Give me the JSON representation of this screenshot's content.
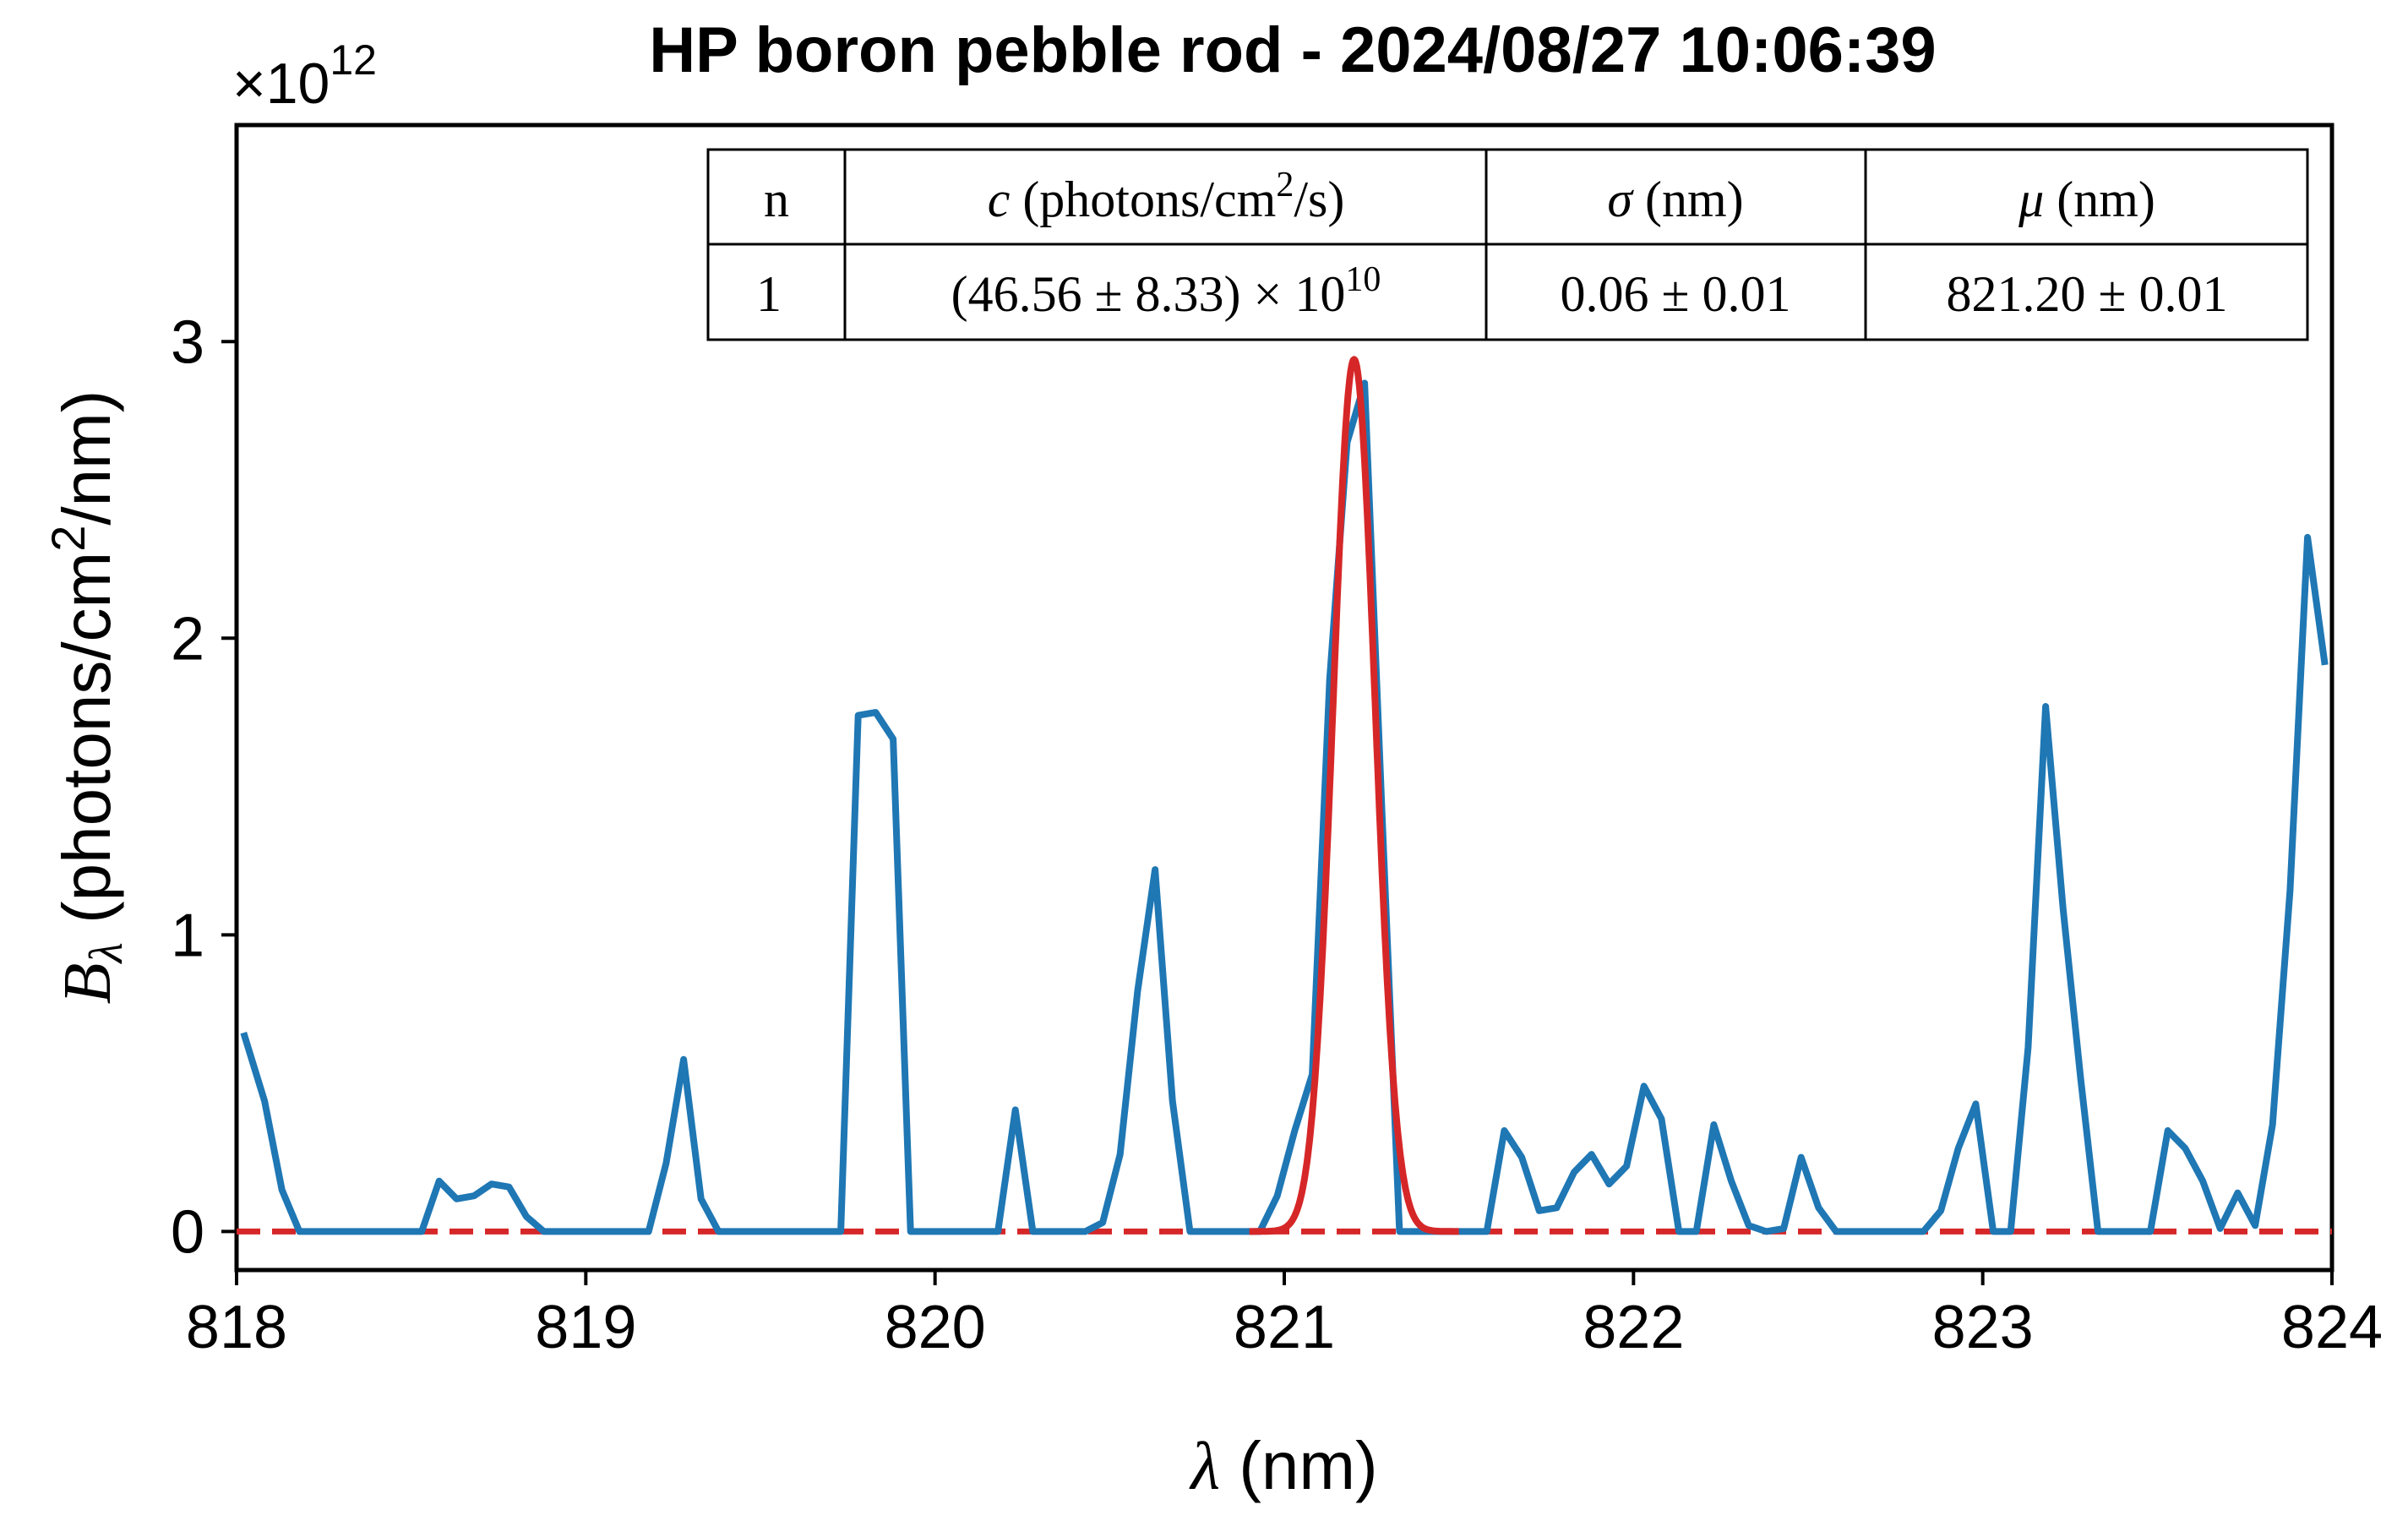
{
  "chart_data": {
    "type": "line",
    "title": "HP boron pebble rod - 2024/08/27 10:06:39",
    "xlabel_symbol": "λ",
    "xlabel_unit": " (nm)",
    "ylabel_symbol": "B",
    "ylabel_subscript": "λ",
    "ylabel_unit_a": "  (photons/cm",
    "ylabel_unit_sup": "2",
    "ylabel_unit_b": "/nm)",
    "y_multiplier_base": "×10",
    "y_multiplier_exp": "12",
    "xlim": [
      818,
      824
    ],
    "ylim": [
      -0.13,
      3.73
    ],
    "y_scale": 1000000000000.0,
    "xticks": [
      818,
      819,
      820,
      821,
      822,
      823,
      824
    ],
    "yticks": [
      0,
      1,
      2,
      3
    ],
    "grid": false,
    "colors": {
      "measured": "#1f77b4",
      "fit": "#d62728",
      "baseline": "#d62728"
    },
    "series": [
      {
        "style": "solid",
        "color": "#1f77b4",
        "x": [
          818.02,
          818.08,
          818.13,
          818.18,
          818.23,
          818.28,
          818.33,
          818.38,
          818.43,
          818.48,
          818.53,
          818.58,
          818.63,
          818.68,
          818.73,
          818.78,
          818.83,
          818.88,
          818.93,
          818.98,
          819.03,
          819.08,
          819.13,
          819.18,
          819.23,
          819.28,
          819.33,
          819.38,
          819.43,
          819.48,
          819.53,
          819.58,
          819.63,
          819.68,
          819.73,
          819.78,
          819.83,
          819.88,
          819.93,
          819.98,
          820.03,
          820.08,
          820.13,
          820.18,
          820.23,
          820.28,
          820.33,
          820.38,
          820.43,
          820.48,
          820.53,
          820.58,
          820.63,
          820.68,
          820.73,
          820.78,
          820.83,
          820.88,
          820.93,
          820.98,
          821.03,
          821.08,
          821.13,
          821.18,
          821.23,
          821.28,
          821.33,
          821.38,
          821.43,
          821.48,
          821.53,
          821.58,
          821.63,
          821.68,
          821.73,
          821.78,
          821.83,
          821.88,
          821.93,
          821.98,
          822.03,
          822.08,
          822.13,
          822.18,
          822.23,
          822.28,
          822.33,
          822.38,
          822.43,
          822.48,
          822.53,
          822.58,
          822.63,
          822.68,
          822.73,
          822.78,
          822.83,
          822.88,
          822.93,
          822.98,
          823.03,
          823.08,
          823.13,
          823.18,
          823.23,
          823.28,
          823.33,
          823.38,
          823.43,
          823.48,
          823.53,
          823.58,
          823.63,
          823.68,
          823.73,
          823.78,
          823.83,
          823.88,
          823.93,
          823.98
        ],
        "values": [
          0.67,
          0.44,
          0.14,
          0.0,
          0.0,
          0.0,
          0.0,
          0.0,
          0.0,
          0.0,
          0.0,
          0.17,
          0.11,
          0.12,
          0.16,
          0.15,
          0.05,
          0.0,
          0.0,
          0.0,
          0.0,
          0.0,
          0.0,
          0.0,
          0.23,
          0.58,
          0.11,
          0.0,
          0.0,
          0.0,
          0.0,
          0.0,
          0.0,
          0.0,
          0.0,
          1.74,
          1.75,
          1.66,
          0.0,
          0.0,
          0.0,
          0.0,
          0.0,
          0.0,
          0.41,
          0.0,
          0.0,
          0.0,
          0.0,
          0.03,
          0.26,
          0.81,
          1.22,
          0.44,
          0.0,
          0.0,
          0.0,
          0.0,
          0.0,
          0.12,
          0.34,
          0.53,
          1.86,
          2.66,
          2.86,
          1.41,
          0.0,
          0.0,
          0.0,
          0.0,
          0.0,
          0.0,
          0.34,
          0.25,
          0.07,
          0.08,
          0.2,
          0.26,
          0.16,
          0.22,
          0.49,
          0.38,
          0.0,
          0.0,
          0.36,
          0.17,
          0.02,
          0.0,
          0.01,
          0.25,
          0.08,
          0.0,
          0.0,
          0.0,
          0.0,
          0.0,
          0.0,
          0.07,
          0.28,
          0.43,
          0.0,
          0.0,
          0.62,
          1.77,
          1.09,
          0.52,
          0.0,
          0.0,
          0.0,
          0.0,
          0.34,
          0.28,
          0.17,
          0.01,
          0.13,
          0.02,
          0.36,
          1.15,
          2.34,
          1.91
        ]
      },
      {
        "style": "solid",
        "color": "#d62728",
        "model": "gaussian",
        "amplitude": 2.94,
        "mu": 821.2,
        "sigma": 0.06,
        "x_range": [
          820.9,
          821.5
        ]
      },
      {
        "style": "dashed",
        "color": "#d62728",
        "x": [
          818,
          824
        ],
        "values": [
          0,
          0
        ]
      }
    ],
    "fit_table": {
      "headers": {
        "n": "n",
        "c_symbol": "c",
        "c_unit_a": " (photons/cm",
        "c_unit_sup": "2",
        "c_unit_b": "/s)",
        "sigma_symbol": "σ",
        "sigma_unit": " (nm)",
        "mu_symbol": "μ",
        "mu_unit": " (nm)"
      },
      "row": {
        "n": "1",
        "c_main": "(46.56 ± 8.33) × 10",
        "c_exp": "10",
        "sigma": "0.06 ± 0.01",
        "mu": "821.20 ± 0.01"
      }
    }
  }
}
